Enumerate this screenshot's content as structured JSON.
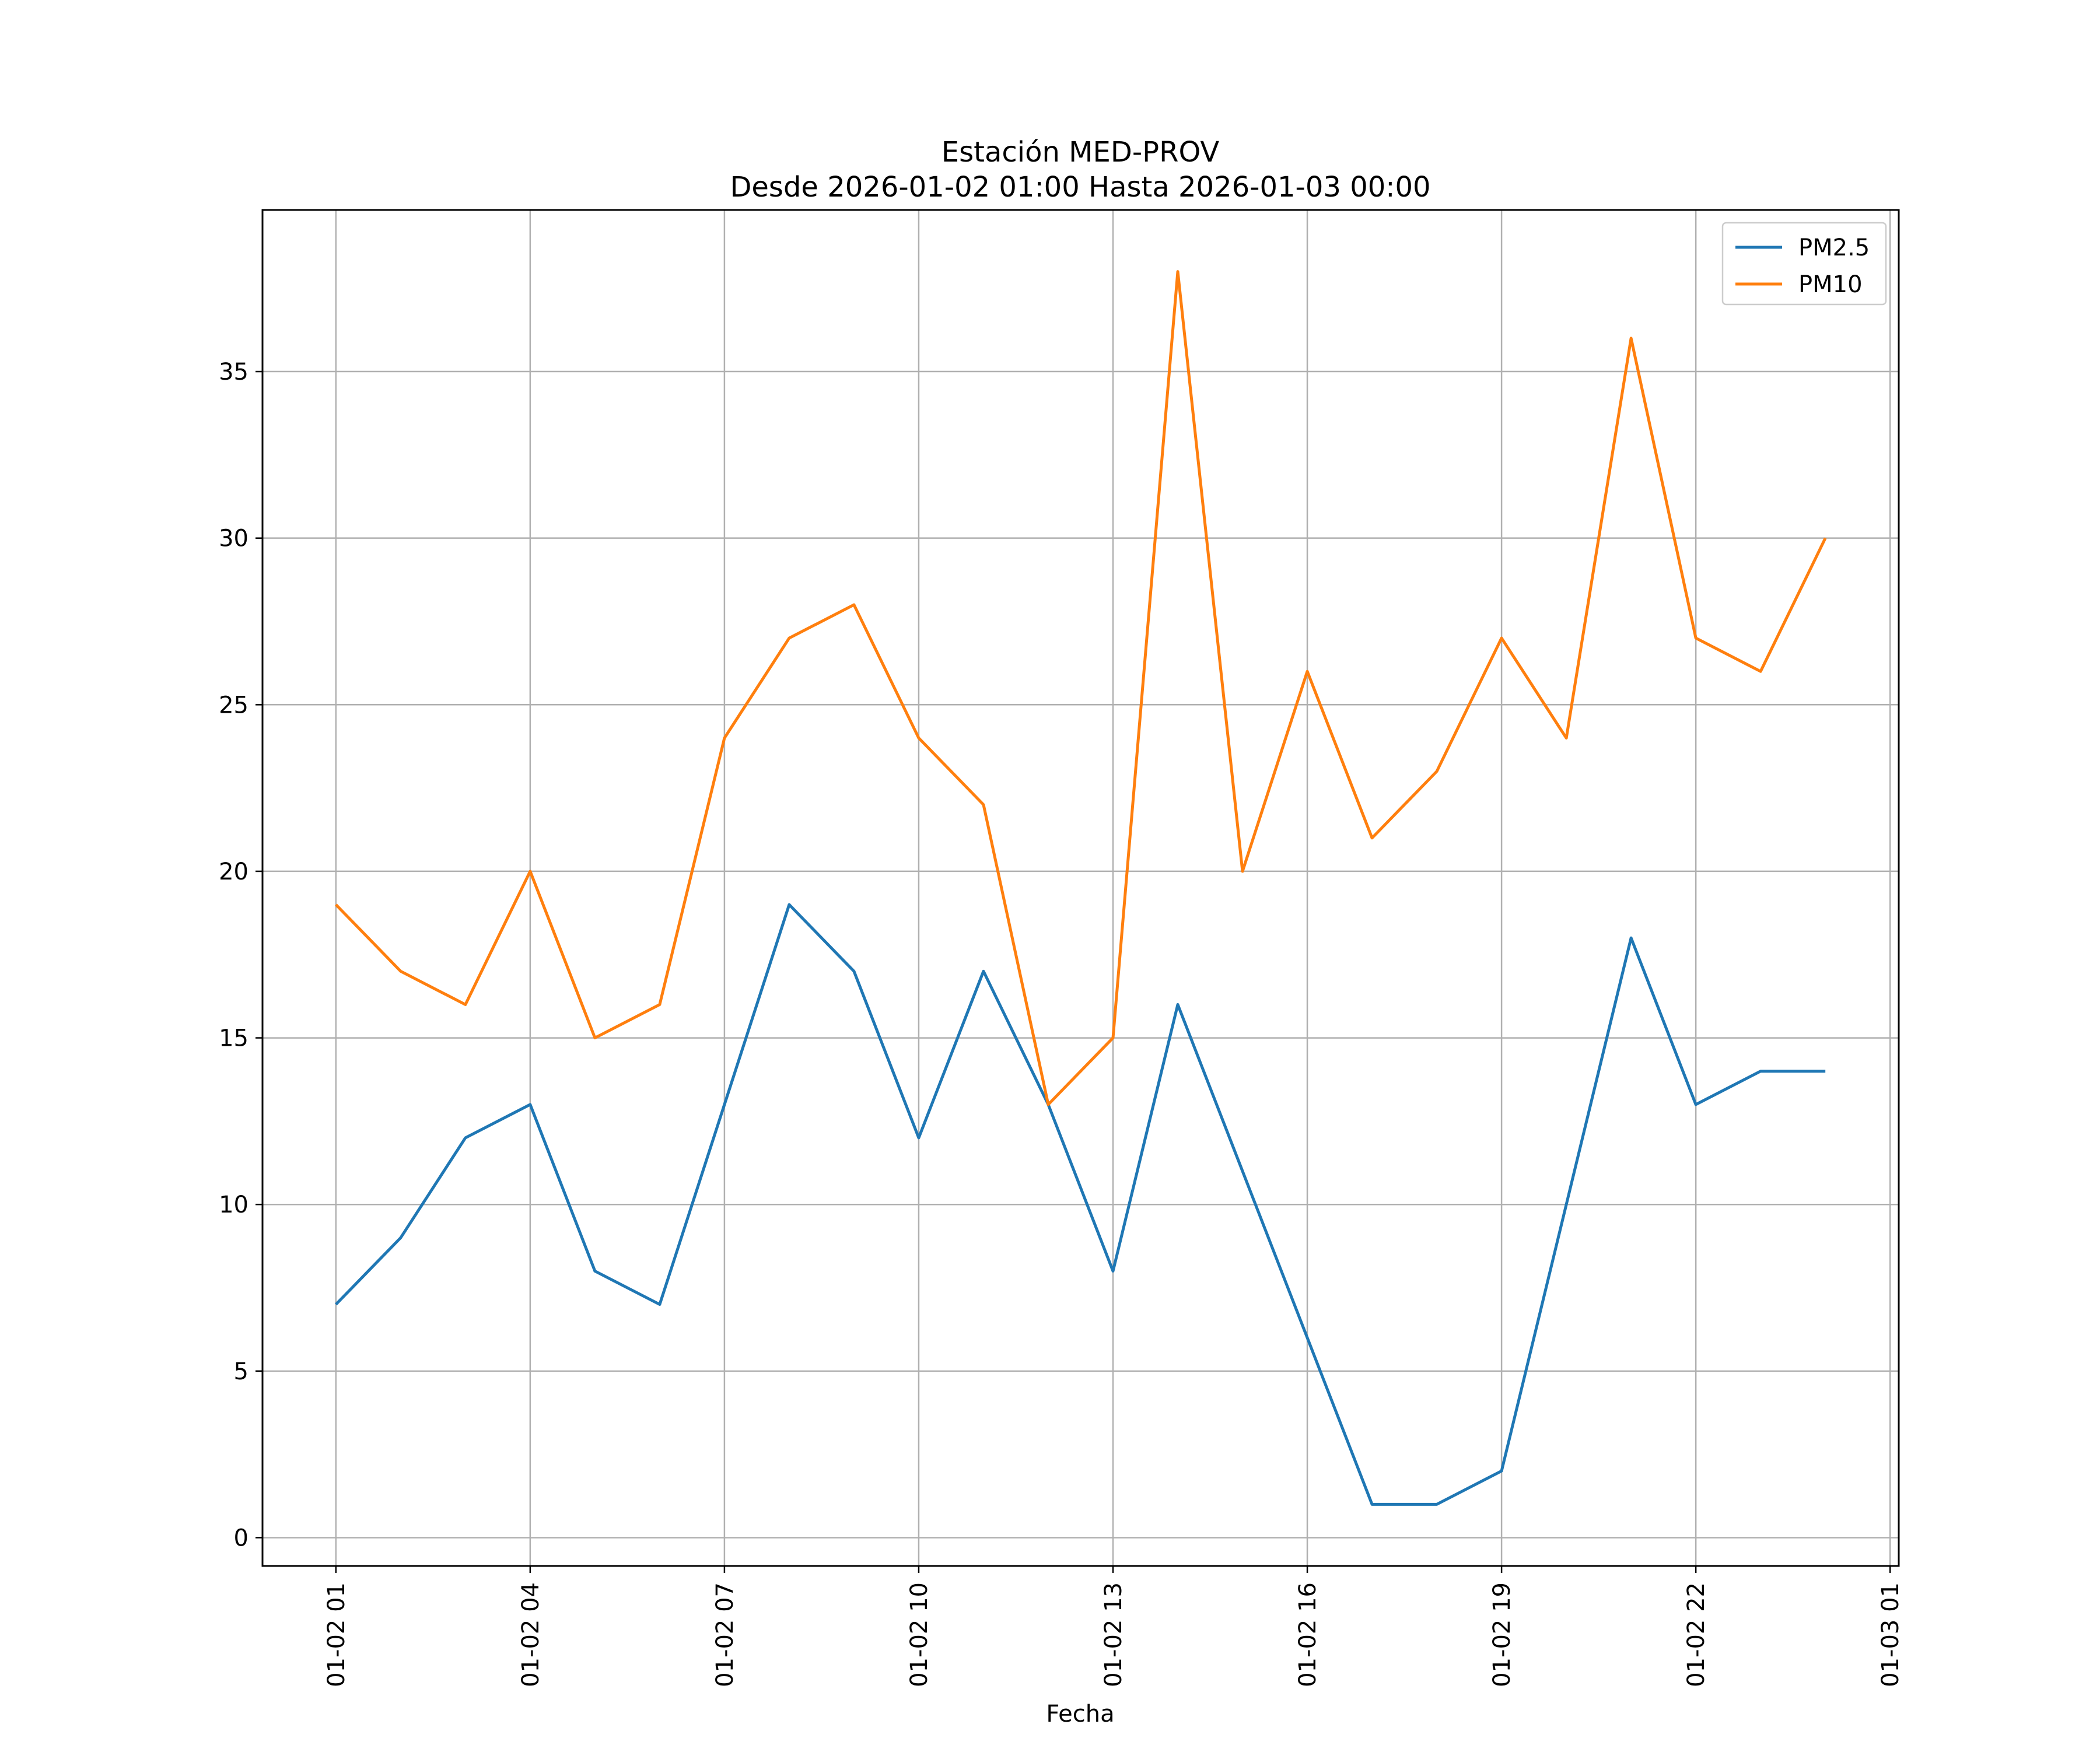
{
  "chart_data": {
    "type": "line",
    "title": "Estación MED-PROV",
    "subtitle": "Desde 2026-01-02 01:00 Hasta 2026-01-03 00:00",
    "xlabel": "Fecha",
    "ylabel": "",
    "x": [
      "2026-01-02 01:00",
      "2026-01-02 02:00",
      "2026-01-02 03:00",
      "2026-01-02 04:00",
      "2026-01-02 05:00",
      "2026-01-02 06:00",
      "2026-01-02 07:00",
      "2026-01-02 08:00",
      "2026-01-02 09:00",
      "2026-01-02 10:00",
      "2026-01-02 11:00",
      "2026-01-02 12:00",
      "2026-01-02 13:00",
      "2026-01-02 14:00",
      "2026-01-02 15:00",
      "2026-01-02 16:00",
      "2026-01-02 17:00",
      "2026-01-02 18:00",
      "2026-01-02 19:00",
      "2026-01-02 20:00",
      "2026-01-02 21:00",
      "2026-01-02 22:00",
      "2026-01-02 23:00",
      "2026-01-03 00:00"
    ],
    "x_ticks": [
      {
        "x": "2026-01-02 01:00",
        "label": "01-02 01"
      },
      {
        "x": "2026-01-02 04:00",
        "label": "01-02 04"
      },
      {
        "x": "2026-01-02 07:00",
        "label": "01-02 07"
      },
      {
        "x": "2026-01-02 10:00",
        "label": "01-02 10"
      },
      {
        "x": "2026-01-02 13:00",
        "label": "01-02 13"
      },
      {
        "x": "2026-01-02 16:00",
        "label": "01-02 16"
      },
      {
        "x": "2026-01-02 19:00",
        "label": "01-02 19"
      },
      {
        "x": "2026-01-02 22:00",
        "label": "01-02 22"
      },
      {
        "x": "2026-01-03 01:00",
        "label": "01-03 01"
      }
    ],
    "xlim": [
      "2026-01-01 23:52",
      "2026-01-03 01:08"
    ],
    "y_ticks": [
      0,
      5,
      10,
      15,
      20,
      25,
      30,
      35
    ],
    "ylim": [
      -0.85,
      39.85
    ],
    "grid": true,
    "legend": "top-right",
    "series": [
      {
        "name": "PM2.5",
        "color": "#1f77b4",
        "values": [
          7,
          9,
          12,
          13,
          8,
          7,
          13,
          19,
          17,
          12,
          17,
          13,
          8,
          16,
          11,
          6,
          1,
          1,
          2,
          10,
          18,
          13,
          14,
          14
        ]
      },
      {
        "name": "PM10",
        "color": "#ff7f0e",
        "values": [
          19,
          17,
          16,
          20,
          15,
          16,
          24,
          27,
          28,
          24,
          22,
          13,
          15,
          38,
          20,
          26,
          21,
          23,
          27,
          24,
          36,
          27,
          26,
          30
        ]
      }
    ]
  }
}
